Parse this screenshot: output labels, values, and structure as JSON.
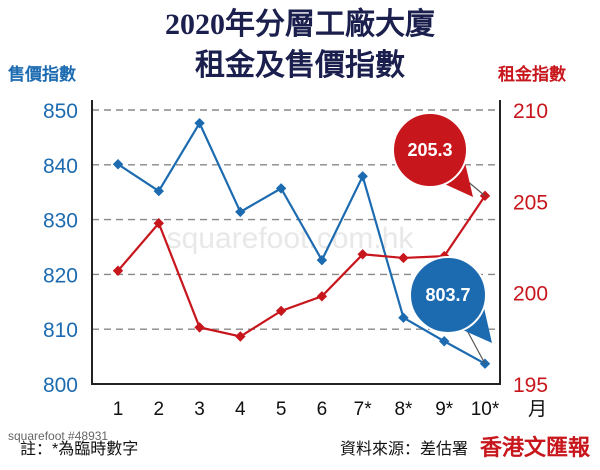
{
  "chart_data": {
    "type": "line",
    "title_line1": "2020年分層工廠大廈",
    "title_line2": "租金及售價指數",
    "ylabel_left": "售價指數",
    "ylabel_right": "租金指數",
    "x_unit": "月",
    "categories": [
      "1",
      "2",
      "3",
      "4",
      "5",
      "6",
      "7*",
      "8*",
      "9*",
      "10*"
    ],
    "left_axis": {
      "ylim": [
        800,
        850
      ],
      "ticks": [
        800,
        810,
        820,
        830,
        840,
        850
      ],
      "color": "#1c6bb0"
    },
    "right_axis": {
      "ylim": [
        195,
        210
      ],
      "ticks": [
        195,
        200,
        205,
        210
      ],
      "color": "#c8161d"
    },
    "series": [
      {
        "name": "售價指數",
        "axis": "left",
        "color": "#1c6bb0",
        "values": [
          840.1,
          835.2,
          847.6,
          831.4,
          835.7,
          822.6,
          837.9,
          812.1,
          807.8,
          803.7
        ]
      },
      {
        "name": "租金指數",
        "axis": "right",
        "color": "#c8161d",
        "values": [
          201.2,
          203.8,
          198.1,
          197.6,
          199.0,
          199.8,
          202.1,
          201.9,
          202.0,
          205.3
        ]
      }
    ],
    "annotations": [
      {
        "series": 1,
        "text": "205.3",
        "color": "#c8161d"
      },
      {
        "series": 0,
        "text": "803.7",
        "color": "#1c6bb0"
      }
    ],
    "grid": true,
    "legend": "none"
  },
  "notes": {
    "left": "註：*為臨時數字",
    "right": "資料來源：差估署"
  },
  "watermark": "squarefoot.com.hk",
  "credit": "squarefoot #48931",
  "logo": "香港文匯報"
}
